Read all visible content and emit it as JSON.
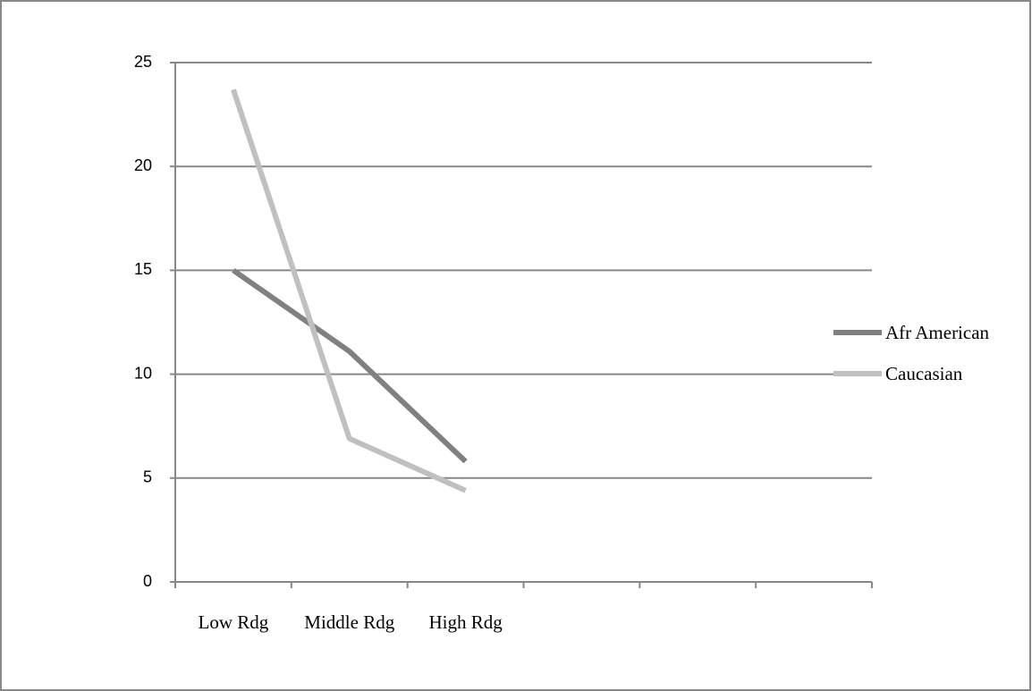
{
  "chart_data": {
    "type": "line",
    "categories": [
      "Low Rdg",
      "Middle Rdg",
      "High Rdg",
      null,
      null,
      null
    ],
    "series": [
      {
        "name": "Afr American",
        "color": "#808080",
        "values": [
          15,
          11.1,
          5.8,
          null,
          null,
          null
        ]
      },
      {
        "name": "Caucasian",
        "color": "#c0c0c0",
        "values": [
          23.7,
          6.9,
          4.4,
          null,
          null,
          null
        ]
      }
    ],
    "ylim": [
      0,
      25
    ],
    "yticks": [
      0,
      5,
      10,
      15,
      20,
      25
    ],
    "grid": true,
    "legend": "right"
  }
}
